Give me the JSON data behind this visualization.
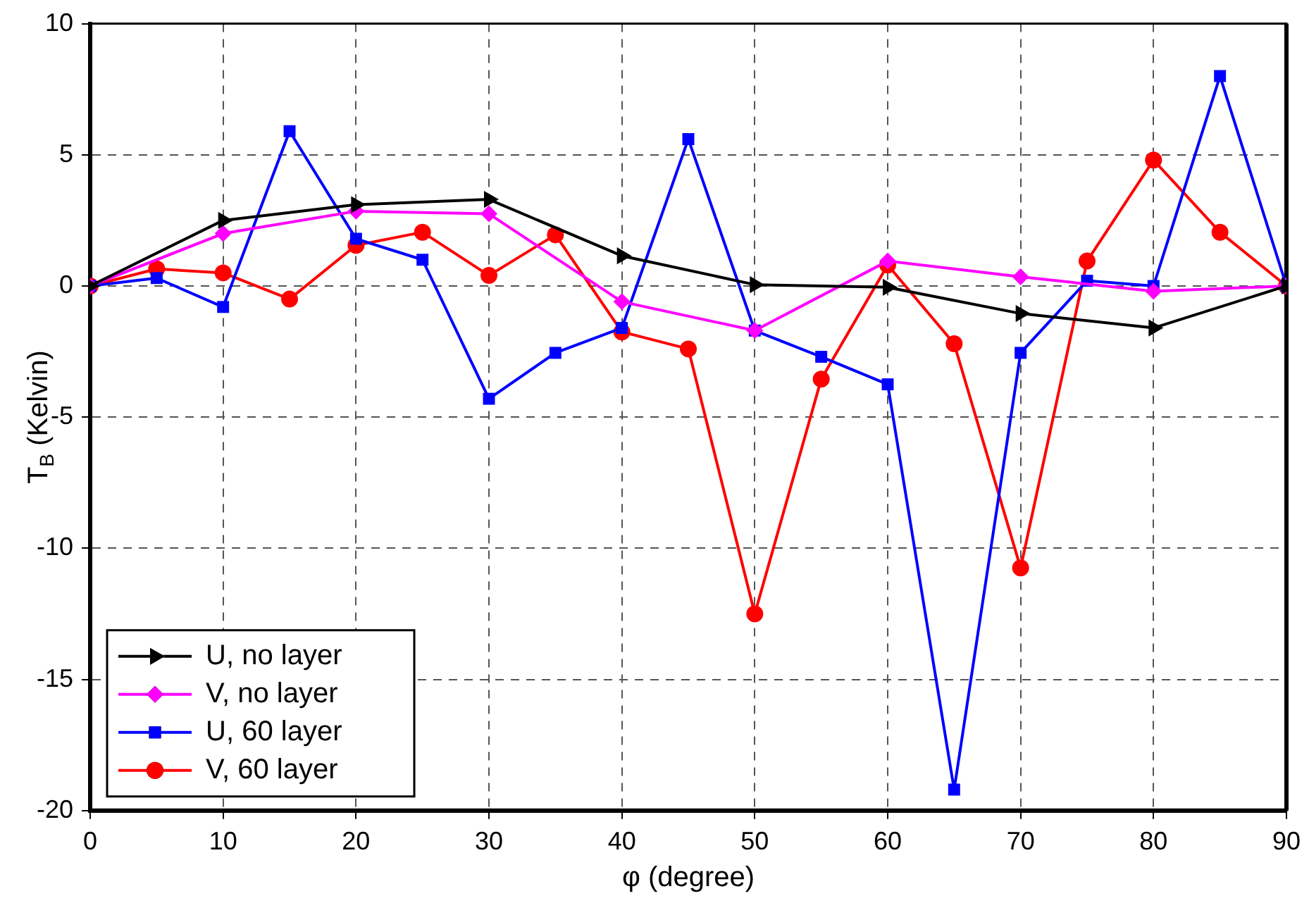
{
  "chart_data": {
    "type": "line",
    "xlabel": "φ (degree)",
    "ylabel": "T$_{B}$ (Kelvin)",
    "xlim": [
      0,
      90
    ],
    "xticks": [
      0,
      10,
      20,
      30,
      40,
      50,
      60,
      70,
      80,
      90
    ],
    "ylim": [
      -20,
      10
    ],
    "yticks": [
      -20,
      -15,
      -10,
      -5,
      0,
      5,
      10
    ],
    "grid": true,
    "legend": "bottom left",
    "line_style": "solid",
    "series": [
      {
        "name": "U, no layer",
        "color": "#000000",
        "marker": "triangle",
        "x": [
          0,
          10,
          20,
          30,
          40,
          50,
          60,
          70,
          80,
          90
        ],
        "values": [
          0,
          2.5,
          3.1,
          3.3,
          1.15,
          0.05,
          -0.05,
          -1.05,
          -1.6,
          0
        ]
      },
      {
        "name": "V, no layer",
        "color": "#ff00ff",
        "marker": "diamond",
        "x": [
          0,
          10,
          20,
          30,
          40,
          50,
          60,
          70,
          80,
          90
        ],
        "values": [
          0,
          2.0,
          2.85,
          2.75,
          -0.6,
          -1.7,
          0.95,
          0.35,
          -0.2,
          0
        ]
      },
      {
        "name": "U, 60 layer",
        "color": "#0000ff",
        "marker": "square",
        "x": [
          0,
          5,
          10,
          15,
          20,
          25,
          30,
          35,
          40,
          45,
          50,
          55,
          60,
          65,
          70,
          75,
          80,
          85,
          90
        ],
        "values": [
          0,
          0.3,
          -0.8,
          5.9,
          1.8,
          1.0,
          -4.3,
          -2.55,
          -1.6,
          5.6,
          -1.7,
          -2.7,
          -3.75,
          -19.2,
          -2.55,
          0.2,
          0,
          8.0,
          0
        ]
      },
      {
        "name": "V, 60 layer",
        "color": "#ff0000",
        "marker": "circle",
        "x": [
          0,
          5,
          10,
          15,
          20,
          25,
          30,
          35,
          40,
          45,
          50,
          55,
          60,
          65,
          70,
          75,
          80,
          85,
          90
        ],
        "values": [
          0,
          0.65,
          0.5,
          -0.5,
          1.55,
          2.05,
          0.4,
          1.95,
          -1.75,
          -2.4,
          -12.5,
          -3.55,
          0.8,
          -2.2,
          -10.75,
          0.95,
          4.8,
          2.05,
          0
        ]
      }
    ]
  }
}
